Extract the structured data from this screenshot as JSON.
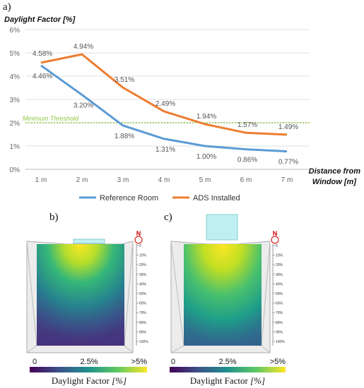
{
  "panels": {
    "a": "a)",
    "b": "b)",
    "c": "c)"
  },
  "chart_data": {
    "type": "line",
    "ylabel": "Daylight Factor [%]",
    "xlabel_line1": "Distance from",
    "xlabel_line2": "Window [m]",
    "categories": [
      "1 m",
      "2 m",
      "3 m",
      "4 m",
      "5 m",
      "6 m",
      "7 m"
    ],
    "x": [
      1,
      2,
      3,
      4,
      5,
      6,
      7
    ],
    "y_ticks": [
      "0%",
      "1%",
      "2%",
      "3%",
      "4%",
      "5%",
      "6%"
    ],
    "ylim": [
      0,
      6
    ],
    "grid": "horizontal",
    "legend_position": "bottom",
    "threshold": {
      "label": "Minimum Threshold",
      "value": 2,
      "color": "#8dc63f"
    },
    "series": [
      {
        "name": "Reference Room",
        "color": "#5b9bd5",
        "values": [
          4.46,
          3.2,
          1.88,
          1.31,
          1.0,
          0.86,
          0.77
        ],
        "labels": [
          "4.46%",
          "3.20%",
          "1.88%",
          "1.31%",
          "1.00%",
          "0.86%",
          "0.77%"
        ]
      },
      {
        "name": "ADS Installed",
        "color": "#ed7d31",
        "values": [
          4.58,
          4.94,
          3.51,
          2.49,
          1.94,
          1.57,
          1.49
        ],
        "labels": [
          "4.58%",
          "4.94%",
          "3.51%",
          "2.49%",
          "1.94%",
          "1.57%",
          "1.49%"
        ]
      }
    ]
  },
  "maps": {
    "north": "N",
    "depth_ticks": [
      "0",
      "10%",
      "20%",
      "30%",
      "40%",
      "50%",
      "60%",
      "70%",
      "80%",
      "90%",
      "100%"
    ],
    "colorbar": {
      "min": "0",
      "mid": "2.5%",
      "max": ">5%",
      "title": "Daylight Factor ",
      "unit": "[%]"
    }
  }
}
